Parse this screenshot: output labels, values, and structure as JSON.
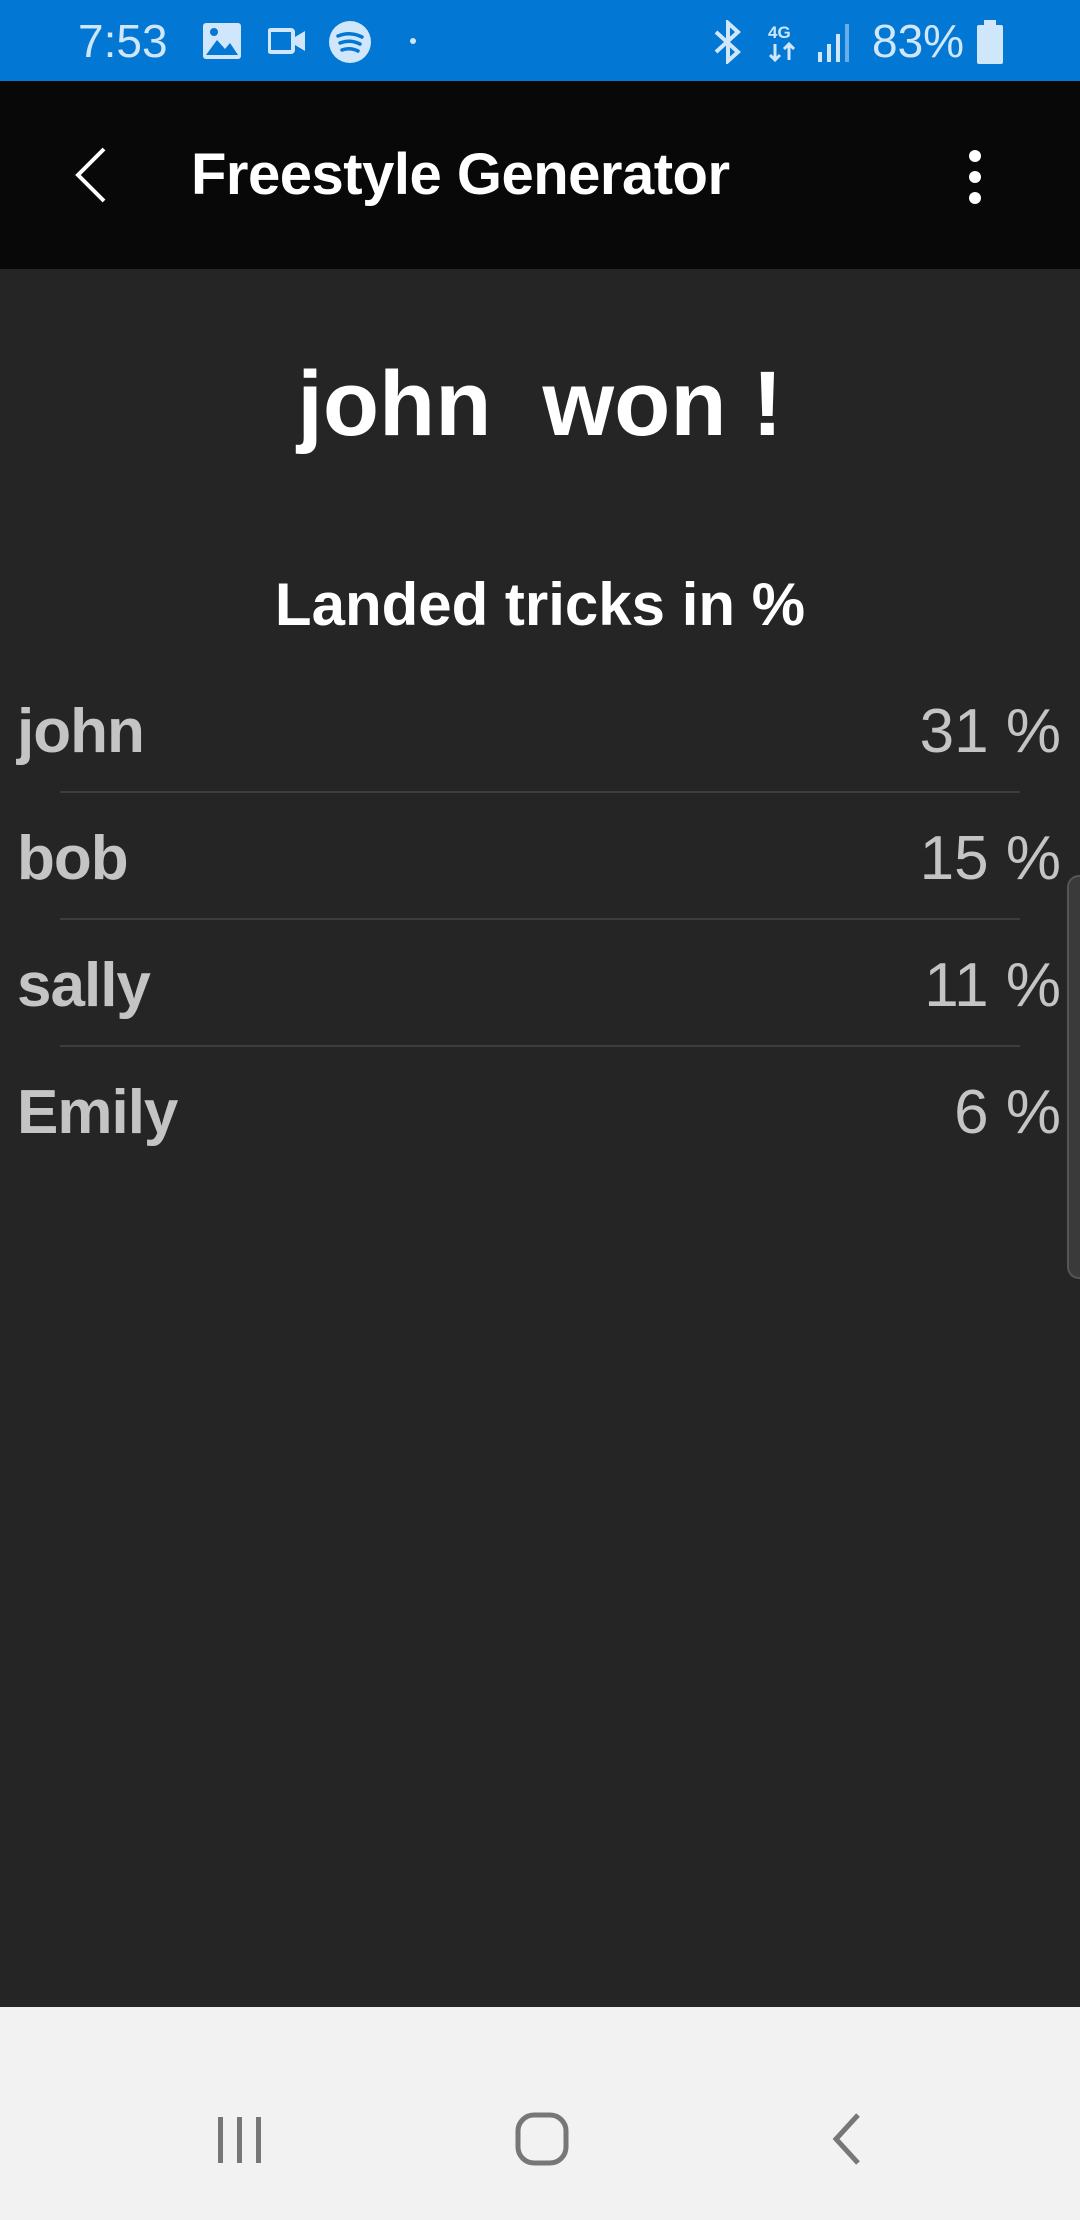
{
  "status_bar": {
    "time": "7:53",
    "battery": "83%",
    "left_icons": [
      "image-icon",
      "video-icon",
      "spotify-icon",
      "dot-icon"
    ],
    "right_icons": [
      "bluetooth-icon",
      "4g-icon",
      "signal-icon",
      "battery-icon"
    ],
    "color": "#0277d4"
  },
  "app_bar": {
    "title": "Freestyle Generator"
  },
  "main": {
    "winner_text": "john  won !",
    "subtitle": "Landed tricks in %",
    "results": [
      {
        "name": "john",
        "value": "31 %"
      },
      {
        "name": "bob",
        "value": "15 %"
      },
      {
        "name": "sally",
        "value": "11 %"
      },
      {
        "name": "Emily",
        "value": "6 %"
      }
    ]
  },
  "nav_bar": {
    "buttons": [
      "recent-apps",
      "home",
      "back"
    ]
  }
}
